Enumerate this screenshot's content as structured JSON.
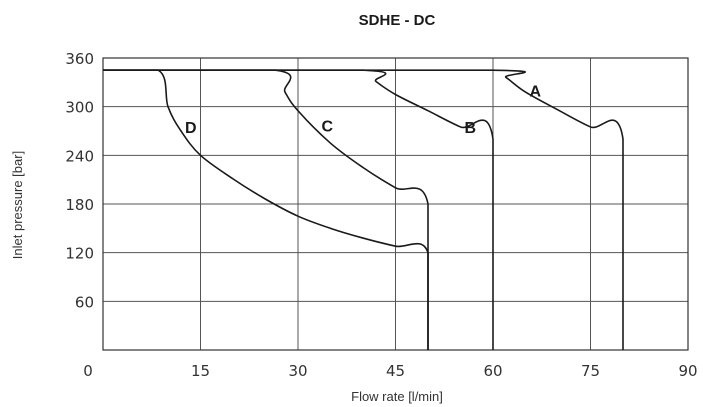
{
  "chart_data": {
    "type": "line",
    "title": "SDHE - DC",
    "xlabel": "Flow rate [l/min]",
    "ylabel": "Inlet pressure [bar]",
    "xlim": [
      0,
      90
    ],
    "ylim": [
      0,
      360
    ],
    "x_ticks": [
      "0",
      "15",
      "30",
      "45",
      "60",
      "75",
      "90"
    ],
    "y_ticks": [
      "60",
      "120",
      "180",
      "240",
      "300",
      "360"
    ],
    "grid": true,
    "legend": "none",
    "series": [
      {
        "name": "A",
        "points": [
          [
            0,
            345
          ],
          [
            60,
            345
          ],
          [
            62,
            336
          ],
          [
            65,
            318
          ],
          [
            70,
            296
          ],
          [
            75,
            275
          ],
          [
            80,
            260
          ],
          [
            80,
            0
          ]
        ]
      },
      {
        "name": "B",
        "points": [
          [
            0,
            345
          ],
          [
            40,
            345
          ],
          [
            42,
            331
          ],
          [
            45,
            315
          ],
          [
            50,
            295
          ],
          [
            55,
            275
          ],
          [
            60,
            260
          ],
          [
            60,
            0
          ]
        ]
      },
      {
        "name": "C",
        "points": [
          [
            0,
            345
          ],
          [
            26.5,
            345
          ],
          [
            28,
            318
          ],
          [
            30,
            295
          ],
          [
            35,
            255
          ],
          [
            40,
            225
          ],
          [
            45,
            200
          ],
          [
            50,
            180
          ],
          [
            50,
            0
          ]
        ]
      },
      {
        "name": "D",
        "points": [
          [
            0,
            345
          ],
          [
            8.5,
            345
          ],
          [
            10,
            300
          ],
          [
            12,
            270
          ],
          [
            15,
            240
          ],
          [
            20,
            211
          ],
          [
            25,
            186
          ],
          [
            30,
            165
          ],
          [
            35,
            150
          ],
          [
            40,
            138
          ],
          [
            45,
            128
          ],
          [
            50,
            120
          ],
          [
            50,
            0
          ]
        ]
      }
    ]
  }
}
